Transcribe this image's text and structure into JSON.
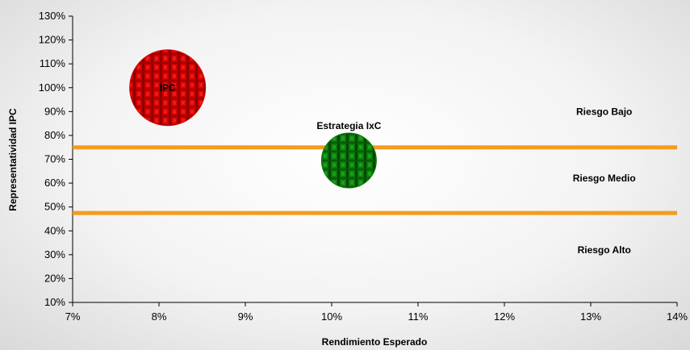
{
  "chart_data": {
    "type": "scatter",
    "xlabel": "Rendimiento Esperado",
    "ylabel": "Representatividad IPC",
    "xlim": [
      0.07,
      0.14
    ],
    "ylim": [
      0.1,
      1.3
    ],
    "x_ticks": [
      {
        "v": 0.07,
        "label": "7%"
      },
      {
        "v": 0.08,
        "label": "8%"
      },
      {
        "v": 0.09,
        "label": "9%"
      },
      {
        "v": 0.1,
        "label": "10%"
      },
      {
        "v": 0.11,
        "label": "11%"
      },
      {
        "v": 0.12,
        "label": "12%"
      },
      {
        "v": 0.13,
        "label": "13%"
      },
      {
        "v": 0.14,
        "label": "14%"
      }
    ],
    "y_ticks": [
      {
        "v": 0.1,
        "label": "10%"
      },
      {
        "v": 0.2,
        "label": "20%"
      },
      {
        "v": 0.3,
        "label": "30%"
      },
      {
        "v": 0.4,
        "label": "40%"
      },
      {
        "v": 0.5,
        "label": "50%"
      },
      {
        "v": 0.6,
        "label": "60%"
      },
      {
        "v": 0.7,
        "label": "70%"
      },
      {
        "v": 0.8,
        "label": "80%"
      },
      {
        "v": 0.9,
        "label": "90%"
      },
      {
        "v": 1.0,
        "label": "100%"
      },
      {
        "v": 1.1,
        "label": "110%"
      },
      {
        "v": 1.2,
        "label": "120%"
      },
      {
        "v": 1.3,
        "label": "130%"
      }
    ],
    "points": [
      {
        "label": "IPC",
        "x": 0.081,
        "y": 1.0,
        "color": "#d40000",
        "size": "large"
      },
      {
        "label": "Estrategia IxC",
        "x": 0.102,
        "y": 0.695,
        "color": "#0a7a0a",
        "size": "small"
      }
    ],
    "threshold_lines": [
      {
        "y": 0.75,
        "color": "#f79a1d"
      },
      {
        "y": 0.475,
        "color": "#f79a1d"
      }
    ],
    "zones": [
      {
        "label": "Riesgo Bajo",
        "x": 0.131,
        "y": 0.9
      },
      {
        "label": "Riesgo Medio",
        "x": 0.131,
        "y": 0.62
      },
      {
        "label": "Riesgo Alto",
        "x": 0.131,
        "y": 0.32
      }
    ],
    "grid": false,
    "legend": "none"
  }
}
